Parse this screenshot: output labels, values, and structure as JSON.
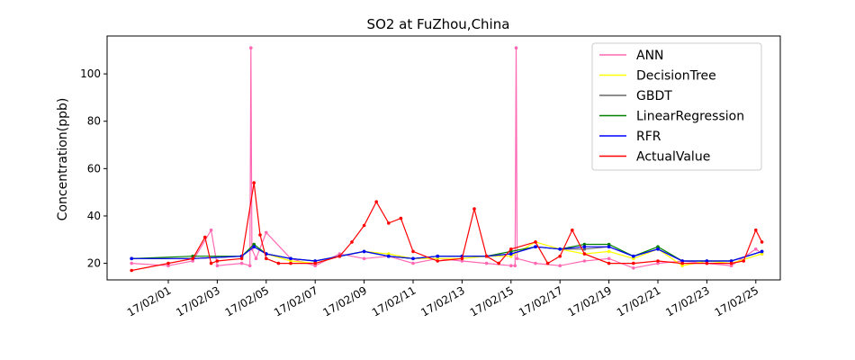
{
  "chart_data": {
    "type": "line",
    "title": "SO2 at FuZhou,China",
    "xlabel": "",
    "ylabel": "Concentration(ppb)",
    "ylim": [
      13,
      116
    ],
    "xlim": [
      "17/01/29 12:00",
      "17/02/26 00:00"
    ],
    "yticks": [
      20,
      40,
      60,
      80,
      100
    ],
    "xtick_labels": [
      "17/02/01",
      "17/02/03",
      "17/02/05",
      "17/02/07",
      "17/02/09",
      "17/02/11",
      "17/02/13",
      "17/02/15",
      "17/02/17",
      "17/02/19",
      "17/02/21",
      "17/02/23",
      "17/02/25"
    ],
    "legend_position": "top-right",
    "grid": false,
    "series": [
      {
        "name": "ANN",
        "color": "#ff69b4",
        "x": [
          "17/01/30 12:00",
          "17/02/01 00:00",
          "17/02/02 00:00",
          "17/02/02 18:00",
          "17/02/03 00:00",
          "17/02/04 00:00",
          "17/02/04 08:00",
          "17/02/04 09:00",
          "17/02/04 10:00",
          "17/02/04 14:00",
          "17/02/05 00:00",
          "17/02/06 00:00",
          "17/02/07 00:00",
          "17/02/08 00:00",
          "17/02/09 00:00",
          "17/02/10 00:00",
          "17/02/11 00:00",
          "17/02/12 00:00",
          "17/02/13 00:00",
          "17/02/14 00:00",
          "17/02/15 00:00",
          "17/02/15 04:00",
          "17/02/15 05:00",
          "17/02/15 06:00",
          "17/02/16 00:00",
          "17/02/17 00:00",
          "17/02/18 00:00",
          "17/02/19 00:00",
          "17/02/20 00:00",
          "17/02/21 00:00",
          "17/02/22 00:00",
          "17/02/23 00:00",
          "17/02/24 00:00",
          "17/02/25 00:00",
          "17/02/25 06:00"
        ],
        "y": [
          20,
          19,
          21,
          34,
          19,
          20,
          19,
          111,
          26,
          22,
          33,
          22,
          19,
          24,
          22,
          23,
          20,
          22,
          21,
          20,
          19,
          19,
          111,
          22,
          20,
          19,
          21,
          22,
          18,
          20,
          21,
          20,
          19,
          26,
          24
        ]
      },
      {
        "name": "DecisionTree",
        "color": "#ffff00",
        "x": [
          "17/01/30 12:00",
          "17/02/02 00:00",
          "17/02/04 00:00",
          "17/02/04 12:00",
          "17/02/05 00:00",
          "17/02/06 00:00",
          "17/02/07 00:00",
          "17/02/08 00:00",
          "17/02/09 00:00",
          "17/02/10 00:00",
          "17/02/11 00:00",
          "17/02/12 00:00",
          "17/02/13 00:00",
          "17/02/14 00:00",
          "17/02/15 00:00",
          "17/02/16 00:00",
          "17/02/17 00:00",
          "17/02/18 00:00",
          "17/02/19 00:00",
          "17/02/20 00:00",
          "17/02/21 00:00",
          "17/02/22 00:00",
          "17/02/23 00:00",
          "17/02/24 00:00",
          "17/02/25 06:00"
        ],
        "y": [
          22,
          22,
          23,
          27,
          24,
          21,
          20,
          23,
          25,
          24,
          22,
          22,
          22,
          23,
          23,
          29,
          26,
          24,
          25,
          22,
          26,
          19,
          21,
          20,
          24
        ]
      },
      {
        "name": "GBDT",
        "color": "#696969",
        "x": [
          "17/01/30 12:00",
          "17/02/02 00:00",
          "17/02/04 00:00",
          "17/02/04 12:00",
          "17/02/05 00:00",
          "17/02/06 00:00",
          "17/02/07 00:00",
          "17/02/08 00:00",
          "17/02/09 00:00",
          "17/02/10 00:00",
          "17/02/11 00:00",
          "17/02/12 00:00",
          "17/02/13 00:00",
          "17/02/14 00:00",
          "17/02/15 00:00",
          "17/02/16 00:00",
          "17/02/17 00:00",
          "17/02/18 00:00",
          "17/02/19 00:00",
          "17/02/20 00:00",
          "17/02/21 00:00",
          "17/02/22 00:00",
          "17/02/23 00:00",
          "17/02/24 00:00",
          "17/02/25 06:00"
        ],
        "y": [
          22,
          22,
          23,
          27,
          24,
          22,
          21,
          23,
          25,
          23,
          22,
          23,
          23,
          23,
          24,
          27,
          26,
          26,
          27,
          23,
          26,
          21,
          21,
          21,
          25
        ]
      },
      {
        "name": "LinearRegression",
        "color": "#008000",
        "x": [
          "17/01/30 12:00",
          "17/02/02 00:00",
          "17/02/04 00:00",
          "17/02/04 12:00",
          "17/02/05 00:00",
          "17/02/06 00:00",
          "17/02/07 00:00",
          "17/02/08 00:00",
          "17/02/09 00:00",
          "17/02/10 00:00",
          "17/02/11 00:00",
          "17/02/12 00:00",
          "17/02/13 00:00",
          "17/02/14 00:00",
          "17/02/15 00:00",
          "17/02/16 00:00",
          "17/02/17 00:00",
          "17/02/18 00:00",
          "17/02/19 00:00",
          "17/02/20 00:00",
          "17/02/21 00:00",
          "17/02/22 00:00",
          "17/02/23 00:00",
          "17/02/24 00:00",
          "17/02/25 06:00"
        ],
        "y": [
          22,
          23,
          23,
          28,
          24,
          22,
          21,
          23,
          25,
          23,
          22,
          23,
          23,
          23,
          25,
          27,
          26,
          28,
          28,
          23,
          27,
          21,
          21,
          21,
          25
        ]
      },
      {
        "name": "RFR",
        "color": "#0000ff",
        "x": [
          "17/01/30 12:00",
          "17/02/02 00:00",
          "17/02/04 00:00",
          "17/02/04 12:00",
          "17/02/05 00:00",
          "17/02/06 00:00",
          "17/02/07 00:00",
          "17/02/08 00:00",
          "17/02/09 00:00",
          "17/02/10 00:00",
          "17/02/11 00:00",
          "17/02/12 00:00",
          "17/02/13 00:00",
          "17/02/14 00:00",
          "17/02/15 00:00",
          "17/02/16 00:00",
          "17/02/17 00:00",
          "17/02/18 00:00",
          "17/02/19 00:00",
          "17/02/20 00:00",
          "17/02/21 00:00",
          "17/02/22 00:00",
          "17/02/23 00:00",
          "17/02/24 00:00",
          "17/02/25 06:00"
        ],
        "y": [
          22,
          22,
          23,
          27,
          24,
          22,
          21,
          23,
          25,
          23,
          22,
          23,
          23,
          23,
          24,
          27,
          26,
          27,
          27,
          23,
          26,
          21,
          21,
          21,
          25
        ]
      },
      {
        "name": "ActualValue",
        "color": "#ff0000",
        "x": [
          "17/01/30 12:00",
          "17/02/01 00:00",
          "17/02/02 00:00",
          "17/02/02 12:00",
          "17/02/02 18:00",
          "17/02/03 00:00",
          "17/02/04 00:00",
          "17/02/04 12:00",
          "17/02/04 18:00",
          "17/02/05 00:00",
          "17/02/05 12:00",
          "17/02/06 00:00",
          "17/02/07 00:00",
          "17/02/08 00:00",
          "17/02/08 12:00",
          "17/02/09 00:00",
          "17/02/09 12:00",
          "17/02/10 00:00",
          "17/02/10 12:00",
          "17/02/11 00:00",
          "17/02/12 00:00",
          "17/02/13 00:00",
          "17/02/13 12:00",
          "17/02/14 00:00",
          "17/02/14 12:00",
          "17/02/15 00:00",
          "17/02/16 00:00",
          "17/02/16 12:00",
          "17/02/17 00:00",
          "17/02/17 12:00",
          "17/02/18 00:00",
          "17/02/19 00:00",
          "17/02/20 00:00",
          "17/02/21 00:00",
          "17/02/22 00:00",
          "17/02/23 00:00",
          "17/02/24 00:00",
          "17/02/24 12:00",
          "17/02/25 00:00",
          "17/02/25 06:00"
        ],
        "y": [
          17,
          20,
          22,
          31,
          20,
          21,
          22,
          54,
          32,
          22,
          20,
          20,
          20,
          23,
          29,
          36,
          46,
          37,
          39,
          25,
          21,
          22,
          43,
          23,
          20,
          26,
          29,
          20,
          23,
          34,
          24,
          20,
          20,
          21,
          20,
          20,
          20,
          21,
          34,
          29
        ]
      }
    ]
  }
}
